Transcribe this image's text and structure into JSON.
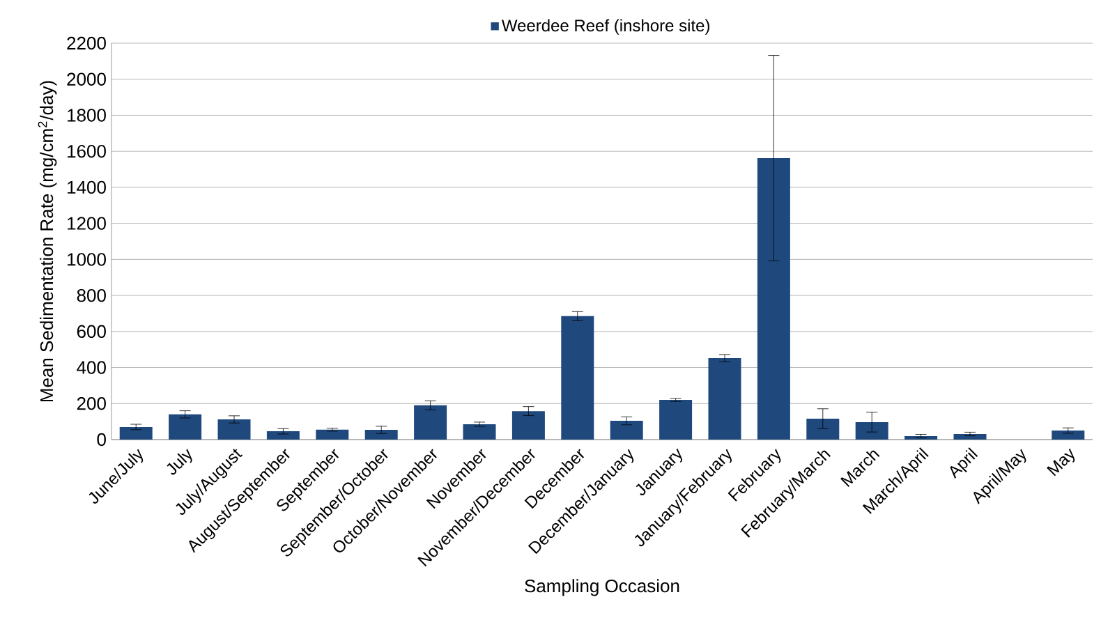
{
  "chart_data": {
    "type": "bar",
    "xlabel": "Sampling Occasion",
    "ylabel": "Mean Sedimentation Rate (mg/cm$^{2}$/day)",
    "categories": [
      "June/July",
      "July",
      "July/August",
      "August/September",
      "September",
      "September/October",
      "October/November",
      "November",
      "November/December",
      "December",
      "December/January",
      "January",
      "January/February",
      "February",
      "February/March",
      "March",
      "March/April",
      "April",
      "April/May",
      "May"
    ],
    "series": [
      {
        "name": "Weerdee Reef (inshore site)",
        "color": "#1f497d",
        "values": [
          70,
          140,
          112,
          46,
          55,
          54,
          190,
          85,
          158,
          685,
          104,
          220,
          452,
          1562,
          116,
          97,
          19,
          31,
          null,
          50
        ],
        "errors": [
          15,
          20,
          20,
          15,
          8,
          20,
          25,
          12,
          25,
          25,
          22,
          8,
          20,
          570,
          55,
          55,
          10,
          10,
          null,
          15
        ]
      }
    ],
    "ylim": [
      0,
      2200
    ],
    "yticks": [
      0,
      200,
      400,
      600,
      800,
      1000,
      1200,
      1400,
      1600,
      1800,
      2000,
      2200
    ],
    "grid": "y",
    "legend": "top"
  }
}
